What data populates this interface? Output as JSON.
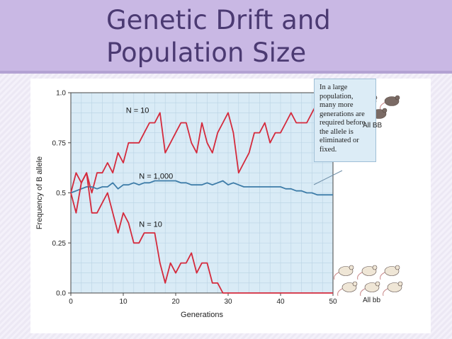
{
  "slide": {
    "title_line1": "Genetic Drift and",
    "title_line2": "Population Size",
    "title_color": "#4b3a72",
    "band_color": "#c9b8e4"
  },
  "callout": {
    "text": "In a large population, many more generations are required before the allele is eliminated or fixed."
  },
  "mice": {
    "top_label": "All BB",
    "bottom_label": "All bb",
    "top_color": "#7a6a64",
    "bottom_color": "#efe6d6"
  },
  "chart_data": {
    "type": "line",
    "title": "",
    "xlabel": "Generations",
    "ylabel": "Frequency of B allele",
    "xlim": [
      0,
      50
    ],
    "ylim": [
      0.0,
      1.0
    ],
    "xticks": [
      "0",
      "10",
      "20",
      "30",
      "40",
      "50"
    ],
    "yticks": [
      "0.0",
      "0.25",
      "0.5",
      "0.75",
      "1.0"
    ],
    "grid": true,
    "background_color": "#d9ebf6",
    "series": [
      {
        "name": "N = 10",
        "color": "#d42a3c",
        "x": [
          0,
          1,
          2,
          3,
          4,
          5,
          6,
          7,
          8,
          9,
          10,
          11,
          12,
          13,
          14,
          15,
          16,
          17,
          18,
          19,
          20,
          21,
          22,
          23,
          24,
          25,
          26,
          27,
          28,
          29,
          30,
          31,
          32,
          33,
          34,
          35,
          36,
          37,
          38,
          39,
          40,
          41,
          42,
          43,
          44,
          45,
          46,
          47,
          48,
          49,
          50
        ],
        "y": [
          0.5,
          0.6,
          0.55,
          0.6,
          0.5,
          0.6,
          0.6,
          0.65,
          0.6,
          0.7,
          0.65,
          0.75,
          0.75,
          0.75,
          0.8,
          0.85,
          0.85,
          0.9,
          0.7,
          0.75,
          0.8,
          0.85,
          0.85,
          0.75,
          0.7,
          0.85,
          0.75,
          0.7,
          0.8,
          0.85,
          0.9,
          0.8,
          0.6,
          0.65,
          0.7,
          0.8,
          0.8,
          0.85,
          0.75,
          0.8,
          0.8,
          0.85,
          0.9,
          0.85,
          0.85,
          0.85,
          0.9,
          0.95,
          0.95,
          0.95,
          1.0
        ]
      },
      {
        "name": "N = 1,000",
        "color": "#3d7ca8",
        "x": [
          0,
          1,
          2,
          3,
          4,
          5,
          6,
          7,
          8,
          9,
          10,
          11,
          12,
          13,
          14,
          15,
          16,
          17,
          18,
          19,
          20,
          21,
          22,
          23,
          24,
          25,
          26,
          27,
          28,
          29,
          30,
          31,
          32,
          33,
          34,
          35,
          36,
          37,
          38,
          39,
          40,
          41,
          42,
          43,
          44,
          45,
          46,
          47,
          48,
          49,
          50
        ],
        "y": [
          0.5,
          0.51,
          0.52,
          0.53,
          0.53,
          0.52,
          0.53,
          0.53,
          0.55,
          0.52,
          0.54,
          0.54,
          0.55,
          0.54,
          0.55,
          0.55,
          0.56,
          0.56,
          0.56,
          0.56,
          0.56,
          0.55,
          0.55,
          0.54,
          0.54,
          0.54,
          0.55,
          0.54,
          0.55,
          0.56,
          0.54,
          0.55,
          0.54,
          0.53,
          0.53,
          0.53,
          0.53,
          0.53,
          0.53,
          0.53,
          0.53,
          0.52,
          0.52,
          0.51,
          0.51,
          0.5,
          0.5,
          0.49,
          0.49,
          0.49,
          0.49
        ]
      },
      {
        "name": "N = 10",
        "color": "#d42a3c",
        "x": [
          0,
          1,
          2,
          3,
          4,
          5,
          6,
          7,
          8,
          9,
          10,
          11,
          12,
          13,
          14,
          15,
          16,
          17,
          18,
          19,
          20,
          21,
          22,
          23,
          24,
          25,
          26,
          27,
          28,
          29,
          30,
          31,
          32,
          33,
          34,
          35,
          36,
          37,
          38,
          39,
          40,
          41,
          42,
          43,
          44,
          45,
          46,
          47,
          48,
          49,
          50
        ],
        "y": [
          0.5,
          0.4,
          0.55,
          0.6,
          0.4,
          0.4,
          0.45,
          0.5,
          0.4,
          0.3,
          0.4,
          0.35,
          0.25,
          0.25,
          0.3,
          0.3,
          0.3,
          0.15,
          0.05,
          0.15,
          0.1,
          0.15,
          0.15,
          0.2,
          0.1,
          0.15,
          0.15,
          0.05,
          0.05,
          0.0,
          0.0,
          0.0,
          0.0,
          0.0,
          0.0,
          0.0,
          0.0,
          0.0,
          0.0,
          0.0,
          0.0,
          0.0,
          0.0,
          0.0,
          0.0,
          0.0,
          0.0,
          0.0,
          0.0,
          0.0,
          0.0
        ]
      }
    ],
    "annotations": [
      {
        "text": "N = 10",
        "x": 10.5,
        "y": 0.9
      },
      {
        "text": "N = 1,000",
        "x": 13,
        "y": 0.57
      },
      {
        "text": "N = 10",
        "x": 13,
        "y": 0.33
      }
    ]
  }
}
